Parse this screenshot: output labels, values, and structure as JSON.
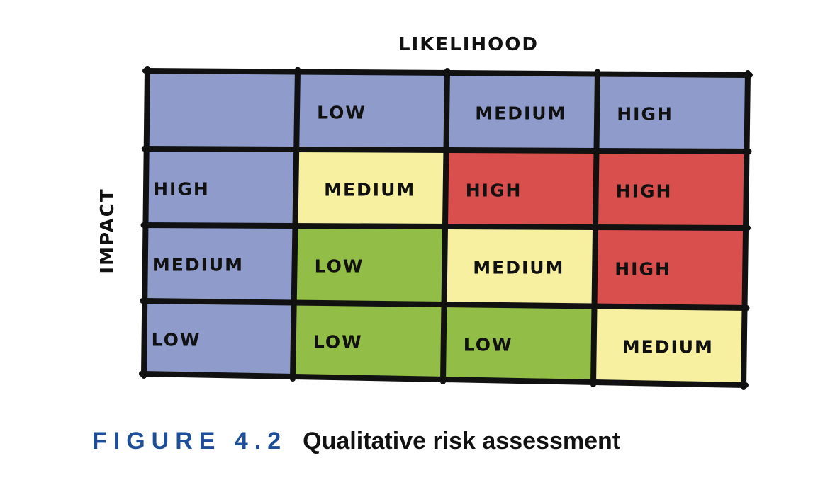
{
  "chart_data": {
    "type": "table",
    "x_axis_label": "LIKELIHOOD",
    "y_axis_label": "IMPACT",
    "column_headers": [
      "",
      "LOW",
      "MEDIUM",
      "HIGH"
    ],
    "rows": [
      {
        "header": "HIGH",
        "cells": [
          "MEDIUM",
          "HIGH",
          "HIGH"
        ]
      },
      {
        "header": "MEDIUM",
        "cells": [
          "LOW",
          "MEDIUM",
          "HIGH"
        ]
      },
      {
        "header": "LOW",
        "cells": [
          "LOW",
          "LOW",
          "MEDIUM"
        ]
      }
    ],
    "colors": {
      "HEADER": "#8e9bcb",
      "LOW": "#92bd46",
      "MEDIUM": "#f6f0a0",
      "HIGH": "#d94f4e",
      "border": "#111111"
    }
  },
  "caption": {
    "figure": "FIGURE 4.2",
    "title": "Qualitative risk assessment"
  }
}
